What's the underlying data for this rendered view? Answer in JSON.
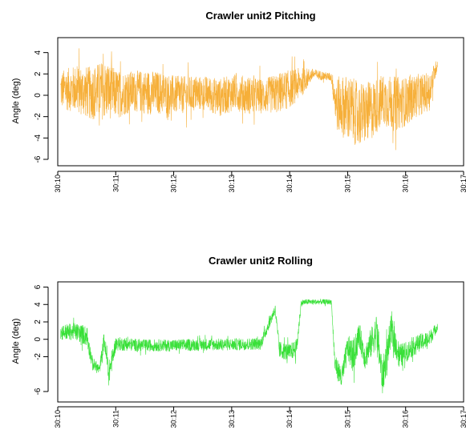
{
  "chart_data": [
    {
      "type": "line",
      "title": "Crawler unit2 Pitching",
      "xlabel": "",
      "ylabel": "Angle (deg)",
      "color": "#f5a623",
      "x_tick_labels": [
        "30:10",
        "30:11",
        "30:12",
        "30:13",
        "30:14",
        "30:15",
        "30:16",
        "30:17"
      ],
      "x_ticks_minutes": [
        10,
        11,
        12,
        13,
        14,
        15,
        16,
        17
      ],
      "y_ticks": [
        -6,
        -4,
        -2,
        0,
        2,
        4
      ],
      "xlim": [
        10,
        17
      ],
      "ylim": [
        -6.6,
        5.4
      ],
      "series": [
        {
          "x": [
            10.05,
            10.3,
            10.55,
            10.8,
            11.05,
            11.3,
            11.55,
            11.8,
            12.05,
            12.3,
            12.55,
            12.8,
            13.05,
            13.3,
            13.55,
            13.8,
            14.0,
            14.2,
            14.4,
            14.6,
            14.72,
            14.8,
            15.0,
            15.2,
            15.4,
            15.6,
            15.8,
            16.0,
            16.2,
            16.4,
            16.55
          ],
          "center": [
            0.5,
            0.6,
            0.2,
            0.5,
            0.1,
            0.4,
            0.3,
            0.2,
            0.0,
            0.1,
            0.2,
            -0.2,
            0.3,
            0.0,
            -0.1,
            0.2,
            0.6,
            1.2,
            2.0,
            1.8,
            1.7,
            -0.8,
            -1.2,
            -1.8,
            -1.5,
            -0.4,
            -0.8,
            -0.6,
            0.0,
            0.3,
            3.0
          ],
          "spread": [
            1.8,
            2.2,
            2.5,
            2.8,
            2.2,
            1.9,
            2.1,
            2.0,
            1.8,
            1.7,
            1.6,
            1.8,
            1.7,
            1.8,
            1.6,
            1.9,
            1.8,
            1.4,
            0.5,
            0.4,
            0.4,
            2.5,
            3.2,
            3.0,
            2.8,
            2.4,
            2.6,
            2.3,
            2.0,
            1.8,
            0.5
          ]
        }
      ]
    },
    {
      "type": "line",
      "title": "Crawler unit2 Rolling",
      "xlabel": "",
      "ylabel": "Angle (deg)",
      "color": "#22dd22",
      "x_tick_labels": [
        "30:10",
        "30:11",
        "30:12",
        "30:13",
        "30:14",
        "30:15",
        "30:16",
        "30:17"
      ],
      "x_ticks_minutes": [
        10,
        11,
        12,
        13,
        14,
        15,
        16,
        17
      ],
      "y_ticks": [
        -6,
        -2,
        0,
        2,
        4,
        6
      ],
      "xlim": [
        10,
        17
      ],
      "ylim": [
        -7.2,
        6.6
      ],
      "series": [
        {
          "x": [
            10.05,
            10.3,
            10.5,
            10.6,
            10.72,
            10.8,
            10.88,
            11.0,
            11.5,
            12.0,
            12.5,
            13.0,
            13.5,
            13.75,
            13.82,
            14.0,
            14.12,
            14.2,
            14.3,
            14.5,
            14.72,
            14.78,
            14.9,
            15.0,
            15.1,
            15.2,
            15.3,
            15.5,
            15.6,
            15.75,
            15.9,
            16.0,
            16.2,
            16.4,
            16.55
          ],
          "center": [
            0.8,
            0.9,
            0.4,
            -2.8,
            -3.5,
            0.0,
            -4.0,
            -0.5,
            -0.7,
            -0.7,
            -0.6,
            -0.6,
            -0.5,
            3.5,
            -1.2,
            -1.5,
            -1.0,
            4.2,
            4.3,
            4.3,
            4.3,
            -2.8,
            -4.5,
            -1.0,
            -2.0,
            0.5,
            -2.0,
            1.0,
            -4.5,
            1.0,
            -2.0,
            -1.5,
            -0.5,
            0.0,
            1.5
          ],
          "spread": [
            0.9,
            1.0,
            1.2,
            0.8,
            0.6,
            1.0,
            1.5,
            0.8,
            0.7,
            0.7,
            0.7,
            0.7,
            0.7,
            0.6,
            1.0,
            1.0,
            1.0,
            0.4,
            0.3,
            0.3,
            0.3,
            1.0,
            1.5,
            1.5,
            2.0,
            1.5,
            1.5,
            2.0,
            2.0,
            1.8,
            1.5,
            1.2,
            1.0,
            1.0,
            0.5
          ]
        }
      ]
    }
  ]
}
